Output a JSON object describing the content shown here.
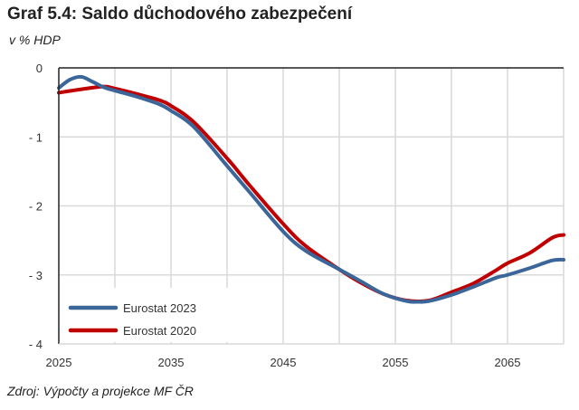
{
  "title": "Graf 5.4: Saldo důchodového zabezpečení",
  "subtitle": "v % HDP",
  "source": "Zdroj: Výpočty a projekce MF ČR",
  "chart_data": {
    "type": "line",
    "title": "Graf 5.4: Saldo důchodového zabezpečení",
    "ylabel": "v % HDP",
    "xlim": [
      2025,
      2070
    ],
    "ylim": [
      -4,
      0
    ],
    "x_ticks": [
      "2025",
      "2035",
      "2045",
      "2055",
      "2065"
    ],
    "y_ticks": [
      "0",
      "-1",
      "-2",
      "-3",
      "-4"
    ],
    "grid": true,
    "legend": "bottom-left",
    "series": [
      {
        "name": "Eurostat 2023",
        "color": "#3B6699",
        "x": [
          2025,
          2026,
          2027,
          2028,
          2029,
          2030,
          2032,
          2034,
          2035,
          2037,
          2040,
          2042,
          2045,
          2047,
          2050,
          2052,
          2054,
          2056,
          2057,
          2058,
          2060,
          2062,
          2064,
          2065,
          2067,
          2069,
          2070
        ],
        "y": [
          -0.29,
          -0.17,
          -0.13,
          -0.2,
          -0.28,
          -0.33,
          -0.42,
          -0.53,
          -0.62,
          -0.85,
          -1.42,
          -1.8,
          -2.37,
          -2.65,
          -2.92,
          -3.1,
          -3.28,
          -3.38,
          -3.39,
          -3.38,
          -3.29,
          -3.17,
          -3.04,
          -3.0,
          -2.9,
          -2.79,
          -2.78
        ]
      },
      {
        "name": "Eurostat 2020",
        "color": "#C00000",
        "x": [
          2025,
          2027,
          2029,
          2030,
          2032,
          2034,
          2035,
          2037,
          2040,
          2042,
          2045,
          2047,
          2050,
          2052,
          2054,
          2056,
          2058,
          2060,
          2062,
          2064,
          2065,
          2067,
          2069,
          2070
        ],
        "y": [
          -0.36,
          -0.31,
          -0.27,
          -0.3,
          -0.38,
          -0.47,
          -0.55,
          -0.78,
          -1.31,
          -1.7,
          -2.26,
          -2.58,
          -2.92,
          -3.12,
          -3.28,
          -3.37,
          -3.37,
          -3.25,
          -3.12,
          -2.93,
          -2.83,
          -2.68,
          -2.46,
          -2.42
        ]
      }
    ]
  }
}
